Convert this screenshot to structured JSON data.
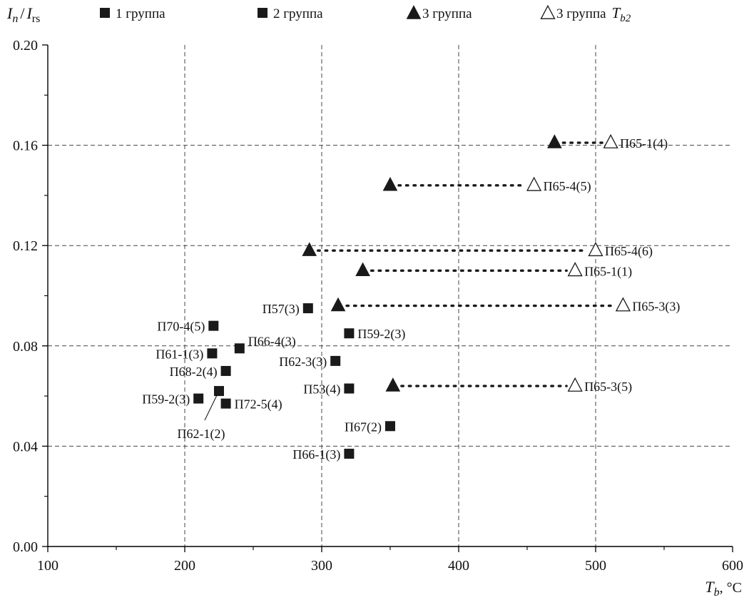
{
  "chart_data": {
    "type": "scatter",
    "title": "",
    "x_axis": {
      "label_main": "T",
      "label_sub": "b",
      "label_unit": ", °C",
      "min": 100,
      "max": 600,
      "major_ticks": [
        100,
        200,
        300,
        400,
        500,
        600
      ],
      "minor_ticks": [
        150,
        250,
        350,
        450,
        550
      ],
      "grid": [
        200,
        300,
        400,
        500
      ]
    },
    "y_axis": {
      "label_main": "I",
      "label_sub": "n",
      "label_sep": "/",
      "label_main2": "I",
      "label_sub2": "rs",
      "min": 0.0,
      "max": 0.2,
      "major_ticks": [
        0.0,
        0.04,
        0.08,
        0.12,
        0.16,
        0.2
      ],
      "tick_labels": [
        "0.00",
        "0.04",
        "0.08",
        "0.12",
        "0.16",
        "0.20"
      ],
      "minor_ticks": [
        0.02,
        0.06,
        0.1,
        0.14,
        0.18
      ],
      "grid": [
        0.04,
        0.08,
        0.12,
        0.16
      ]
    },
    "legend": {
      "placement": "top",
      "entries": [
        {
          "marker": "square",
          "label": "1 группа"
        },
        {
          "marker": "square",
          "label": "2 группа"
        },
        {
          "marker": "triangle-filled",
          "label": "3 группа"
        },
        {
          "marker": "triangle-open",
          "label": "3 группа",
          "label_main": "T",
          "label_sub": "b2"
        }
      ]
    },
    "squares": [
      {
        "label": "П70-4(5)",
        "x": 221,
        "y": 0.088,
        "label_pos": "left"
      },
      {
        "label": "П61-1(3)",
        "x": 220,
        "y": 0.077,
        "label_pos": "left"
      },
      {
        "label": "П66-4(3)",
        "x": 240,
        "y": 0.079,
        "label_pos": "upper-right"
      },
      {
        "label": "П68-2(4)",
        "x": 230,
        "y": 0.07,
        "label_pos": "left"
      },
      {
        "label": "П59-2(3)",
        "x": 210,
        "y": 0.059,
        "label_pos": "left"
      },
      {
        "label": "П62-1(2)",
        "x": 225,
        "y": 0.062,
        "label_pos": "below-leader"
      },
      {
        "label": "П72-5(4)",
        "x": 230,
        "y": 0.057,
        "label_pos": "right"
      },
      {
        "label": "П57(3)",
        "x": 290,
        "y": 0.095,
        "label_pos": "left"
      },
      {
        "label": "П59-2(3)",
        "x": 320,
        "y": 0.085,
        "label_pos": "right"
      },
      {
        "label": "П62-3(3)",
        "x": 310,
        "y": 0.074,
        "label_pos": "left"
      },
      {
        "label": "П53(4)",
        "x": 320,
        "y": 0.063,
        "label_pos": "left"
      },
      {
        "label": "П67(2)",
        "x": 350,
        "y": 0.048,
        "label_pos": "left"
      },
      {
        "label": "П66-1(3)",
        "x": 320,
        "y": 0.037,
        "label_pos": "left"
      }
    ],
    "triangle_pairs": [
      {
        "label": "П65-1(4)",
        "y": 0.161,
        "x_filled": 470,
        "x_open": 511
      },
      {
        "label": "П65-4(5)",
        "y": 0.144,
        "x_filled": 350,
        "x_open": 455
      },
      {
        "label": "П65-4(6)",
        "y": 0.118,
        "x_filled": 291,
        "x_open": 500
      },
      {
        "label": "П65-1(1)",
        "y": 0.11,
        "x_filled": 330,
        "x_open": 485
      },
      {
        "label": "П65-3(3)",
        "y": 0.096,
        "x_filled": 312,
        "x_open": 520
      },
      {
        "label": "П65-3(5)",
        "y": 0.064,
        "x_filled": 352,
        "x_open": 485
      }
    ]
  }
}
